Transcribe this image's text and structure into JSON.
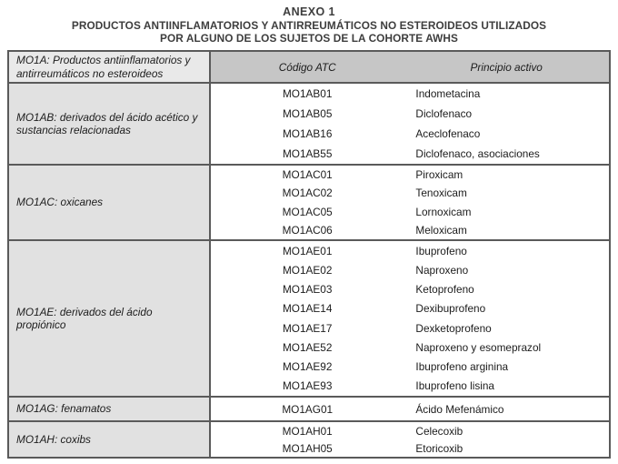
{
  "title": {
    "line1": "ANEXO 1",
    "line2": "PRODUCTOS ANTIINFLAMATORIOS Y ANTIRREUMÁTICOS NO ESTEROIDEOS UTILIZADOS",
    "line3": "POR ALGUNO DE LOS SUJETOS DE LA COHORTE AWHS"
  },
  "table": {
    "header": {
      "category": "MO1A:  Productos antiinflamatorios y antirreumáticos no esteroideos",
      "col_codigo": "Código ATC",
      "col_principio": "Principio activo"
    },
    "sections": [
      {
        "category": "MO1AB: derivados del ácido acético y sustancias relacionadas",
        "rows": [
          {
            "codigo": "MO1AB01",
            "principio": "Indometacina"
          },
          {
            "codigo": "MO1AB05",
            "principio": "Diclofenaco"
          },
          {
            "codigo": "MO1AB16",
            "principio": "Aceclofenaco"
          },
          {
            "codigo": "MO1AB55",
            "principio": "Diclofenaco, asociaciones"
          }
        ]
      },
      {
        "category": "MO1AC: oxicanes",
        "rows": [
          {
            "codigo": "MO1AC01",
            "principio": "Piroxicam"
          },
          {
            "codigo": "MO1AC02",
            "principio": "Tenoxicam"
          },
          {
            "codigo": "MO1AC05",
            "principio": "Lornoxicam"
          },
          {
            "codigo": "MO1AC06",
            "principio": "Meloxicam"
          }
        ]
      },
      {
        "category": "MO1AE: derivados del ácido propiónico",
        "rows": [
          {
            "codigo": "MO1AE01",
            "principio": "Ibuprofeno"
          },
          {
            "codigo": "MO1AE02",
            "principio": "Naproxeno"
          },
          {
            "codigo": "MO1AE03",
            "principio": "Ketoprofeno"
          },
          {
            "codigo": "MO1AE14",
            "principio": "Dexibuprofeno"
          },
          {
            "codigo": "MO1AE17",
            "principio": "Dexketoprofeno"
          },
          {
            "codigo": "MO1AE52",
            "principio": "Naproxeno y esomeprazol"
          },
          {
            "codigo": "MO1AE92",
            "principio": "Ibuprofeno arginina"
          },
          {
            "codigo": "MO1AE93",
            "principio": "Ibuprofeno lisina"
          }
        ]
      },
      {
        "category": "MO1AG: fenamatos",
        "rows": [
          {
            "codigo": "MO1AG01",
            "principio": "Ácido Mefenámico"
          }
        ]
      },
      {
        "category": "MO1AH: coxibs",
        "rows": [
          {
            "codigo": "MO1AH01",
            "principio": "Celecoxib"
          },
          {
            "codigo": "MO1AH05",
            "principio": "Etoricoxib"
          }
        ]
      }
    ]
  },
  "colors": {
    "header_fill": "#c6c6c6",
    "header_category_fill": "#e9e9e9",
    "category_fill": "#e1e1e1",
    "border": "#5a5a5a",
    "text": "#1c1c1c"
  }
}
